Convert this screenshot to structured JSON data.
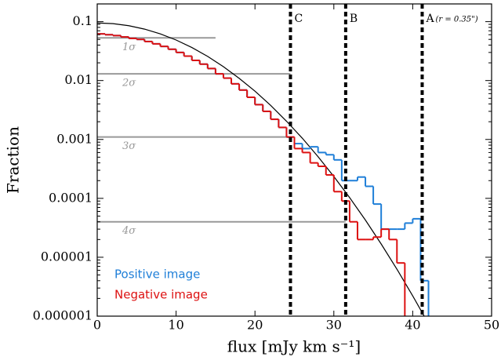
{
  "chart_data": {
    "type": "histogram",
    "x_label": "flux [mJy km s⁻¹]",
    "y_label": "Fraction",
    "xlim": [
      0,
      50
    ],
    "xticks": [
      0,
      10,
      20,
      30,
      40,
      50
    ],
    "ylim": [
      1e-06,
      0.2
    ],
    "log_y": true,
    "yticks": [
      0.1,
      0.01,
      0.001,
      0.0001,
      {
        "value": 1e-05,
        "label": "0.00001"
      },
      {
        "value": 1e-06,
        "label": "0.000001"
      }
    ],
    "legend": "lower left",
    "bins": [
      0,
      1,
      2,
      3,
      4,
      5,
      6,
      7,
      8,
      9,
      10,
      11,
      12,
      13,
      14,
      15,
      16,
      17,
      18,
      19,
      20,
      21,
      22,
      23,
      24,
      25,
      26,
      27,
      28,
      29,
      30,
      31,
      32,
      33,
      34,
      35,
      36,
      37,
      38,
      39,
      40,
      41,
      42
    ],
    "series": [
      {
        "name": "Positive image",
        "color": "#1f7fd8",
        "values": [
          0.062,
          0.06,
          0.058,
          0.055,
          0.052,
          0.05,
          0.046,
          0.042,
          0.038,
          0.034,
          0.03,
          0.026,
          0.022,
          0.019,
          0.016,
          0.013,
          0.011,
          0.0088,
          0.0069,
          0.0052,
          0.0039,
          0.003,
          0.0022,
          0.0016,
          0.0011,
          0.00085,
          0.0007,
          0.00075,
          0.0006,
          0.00055,
          0.00045,
          0.0002,
          0.0002,
          0.00023,
          0.00016,
          8e-05,
          3e-05,
          3e-05,
          3e-05,
          3.8e-05,
          4.5e-05,
          4e-06
        ]
      },
      {
        "name": "Negative image",
        "color": "#dd1111",
        "values": [
          0.062,
          0.06,
          0.058,
          0.055,
          0.052,
          0.05,
          0.046,
          0.042,
          0.038,
          0.034,
          0.03,
          0.026,
          0.022,
          0.019,
          0.016,
          0.013,
          0.011,
          0.0088,
          0.0069,
          0.0052,
          0.0039,
          0.003,
          0.0022,
          0.0016,
          0.0011,
          0.0007,
          0.0006,
          0.0004,
          0.00035,
          0.00025,
          0.00013,
          9e-05,
          4e-05,
          2e-05,
          2e-05,
          2.2e-05,
          3e-05,
          2e-05,
          8e-06,
          0,
          0,
          0
        ]
      }
    ],
    "model": {
      "color": "#000000",
      "x": [
        0,
        2,
        4,
        6,
        8,
        10,
        12,
        14,
        16,
        18,
        20,
        22,
        24,
        26,
        28,
        30,
        32,
        34,
        36,
        38,
        40,
        42
      ],
      "values": [
        0.095,
        0.0925,
        0.0854,
        0.0747,
        0.062,
        0.0488,
        0.0364,
        0.0257,
        0.0172,
        0.0109,
        0.00661,
        0.00378,
        0.00204,
        0.00105,
        0.00051,
        0.000235,
        0.000103,
        4.28e-05,
        1.68e-05,
        6.27e-06,
        2.21e-06,
        7.42e-07
      ]
    },
    "sigma_levels": [
      {
        "label": "1σ",
        "value": 0.053,
        "x_end": 15
      },
      {
        "label": "2σ",
        "value": 0.013,
        "x_end": 24.5
      },
      {
        "label": "3σ",
        "value": 0.0011,
        "x_end": 24.5
      },
      {
        "label": "4σ",
        "value": 4e-05,
        "x_end": 31.5
      }
    ],
    "markers": [
      {
        "label": "C",
        "x": 24.5
      },
      {
        "label": "B",
        "x": 31.5
      },
      {
        "label": "A",
        "x": 41.2,
        "note": "(r = 0.35\")"
      }
    ]
  }
}
